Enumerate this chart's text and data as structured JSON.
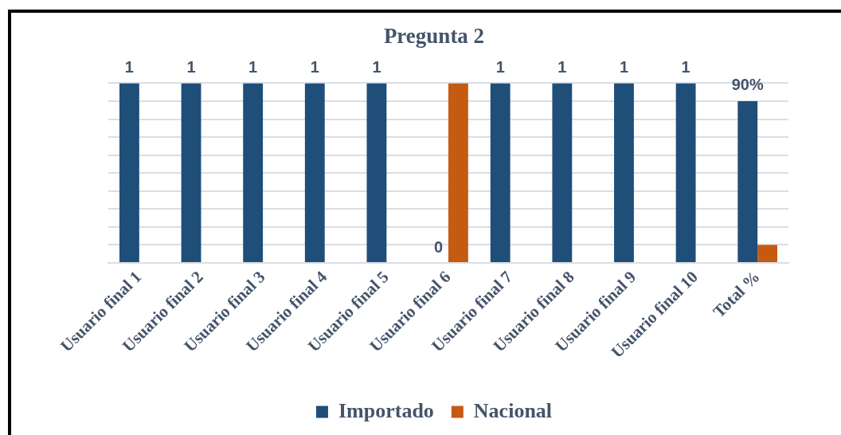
{
  "chart_data": {
    "type": "bar",
    "title": "Pregunta 2",
    "categories": [
      "Usuario final 1",
      "Usuario final 2",
      "Usuario final 3",
      "Usuario final 4",
      "Usuario final 5",
      "Usuario final 6",
      "Usuario final 7",
      "Usuario final 8",
      "Usuario final 9",
      "Usuario final 10",
      "Total %"
    ],
    "series": [
      {
        "name": "Importado",
        "color": "#1f4e79",
        "values": [
          1,
          1,
          1,
          1,
          1,
          0,
          1,
          1,
          1,
          1,
          0.9
        ],
        "value_labels": [
          "1",
          "1",
          "1",
          "1",
          "1",
          "0",
          "1",
          "1",
          "1",
          "1",
          "90%"
        ]
      },
      {
        "name": "Nacional",
        "color": "#c55a11",
        "values": [
          0,
          0,
          0,
          0,
          0,
          1,
          0,
          0,
          0,
          0,
          0.1
        ]
      }
    ],
    "ylim": [
      0,
      1
    ],
    "yticks": [
      {
        "value": 0,
        "label": null
      },
      {
        "value": 0.1,
        "label": null
      },
      {
        "value": 0.2,
        "label": null
      },
      {
        "value": 0.3,
        "label": null
      },
      {
        "value": 0.4,
        "label": null
      },
      {
        "value": 0.5,
        "label": null
      },
      {
        "value": 0.6,
        "label": null
      },
      {
        "value": 0.7,
        "label": null
      },
      {
        "value": 0.8,
        "label": null
      },
      {
        "value": 0.9,
        "label": null
      },
      {
        "value": 1,
        "label": null
      }
    ],
    "tick_labels": "x",
    "grid": "y",
    "legend": "bottom"
  }
}
